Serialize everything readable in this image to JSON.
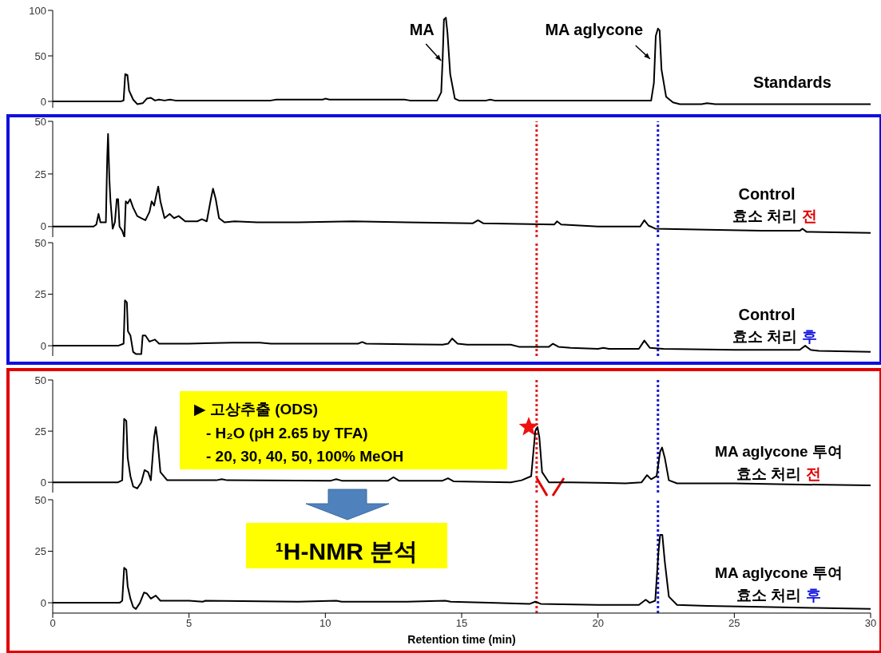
{
  "chart_data": [
    {
      "type": "line",
      "marker": "none",
      "tick_labels": "y",
      "xlim": [
        0,
        30
      ],
      "xticks": [
        0,
        5,
        10,
        15,
        20,
        25,
        30
      ],
      "ylim": [
        -7,
        100
      ],
      "yticks": [
        0,
        50,
        100
      ],
      "x": [
        0,
        2.5,
        2.6,
        2.66,
        2.74,
        2.8,
        2.95,
        3.1,
        3.3,
        3.45,
        3.6,
        3.75,
        3.9,
        4.1,
        4.3,
        4.5,
        8,
        8.2,
        9.9,
        10.0,
        10.15,
        12.9,
        13.1,
        14.1,
        14.25,
        14.3,
        14.35,
        14.42,
        14.48,
        14.58,
        14.75,
        14.9,
        15.9,
        16.05,
        16.2,
        18.5,
        21.95,
        22.05,
        22.12,
        22.2,
        22.26,
        22.33,
        22.5,
        22.75,
        23,
        23.8,
        24,
        24.3,
        30
      ],
      "series": [
        {
          "color": "#000000",
          "values": [
            0,
            0,
            1,
            30,
            29,
            12,
            2,
            -3,
            -2,
            3,
            4,
            1,
            2,
            1,
            2,
            1,
            1,
            2,
            2,
            3,
            2,
            2,
            1,
            1,
            10,
            45,
            90,
            92,
            75,
            30,
            3,
            1,
            1,
            2,
            1,
            1,
            1,
            20,
            72,
            80,
            78,
            35,
            5,
            -1,
            -3,
            -3,
            -2,
            -3,
            -3
          ]
        }
      ],
      "annotations": [
        {
          "text": "MA",
          "x": 14.42,
          "y": 92
        },
        {
          "text": "MA aglycone",
          "x": 22.2,
          "y": 80
        },
        "Standards"
      ]
    },
    {
      "type": "line",
      "marker": "none",
      "tick_labels": "y",
      "xlim": [
        0,
        30
      ],
      "xticks": [
        0,
        5,
        10,
        15,
        20,
        25,
        30
      ],
      "ylim": [
        -5,
        50
      ],
      "yticks": [
        0,
        25,
        50
      ],
      "x": [
        0,
        1.5,
        1.6,
        1.68,
        1.75,
        1.95,
        2.0,
        2.03,
        2.08,
        2.12,
        2.2,
        2.28,
        2.35,
        2.4,
        2.45,
        2.55,
        2.63,
        2.68,
        2.75,
        2.84,
        2.95,
        3.1,
        3.25,
        3.4,
        3.55,
        3.63,
        3.72,
        3.8,
        3.87,
        3.95,
        4.1,
        4.29,
        4.45,
        4.62,
        4.86,
        5.3,
        5.47,
        5.65,
        5.8,
        5.88,
        5.98,
        6.1,
        6.3,
        6.67,
        7.5,
        9,
        11,
        13,
        15.4,
        15.6,
        15.8,
        18.4,
        18.5,
        18.65,
        20,
        21.55,
        21.7,
        21.85,
        22.1,
        24,
        26,
        27.4,
        27.5,
        27.65,
        30
      ],
      "series": [
        {
          "color": "#000000",
          "values": [
            0,
            0,
            1,
            6,
            2,
            2,
            33,
            44,
            22,
            12,
            -1,
            2,
            13,
            13,
            0,
            -2,
            -5,
            12,
            11,
            13,
            9,
            5,
            4,
            3,
            7,
            12,
            10,
            15,
            19,
            12,
            4,
            6,
            4,
            5,
            2.5,
            2.5,
            3.5,
            2.5,
            13,
            18,
            13,
            4,
            2,
            2.5,
            2,
            2,
            2.5,
            2,
            1.5,
            3,
            1.5,
            1,
            2.5,
            1,
            0,
            0,
            3,
            0.5,
            -1,
            -1.5,
            -2,
            -2,
            -1,
            -2.5,
            -3
          ]
        }
      ],
      "ref_lines": [
        {
          "axis": "x",
          "value": 17.75,
          "color": "#e02020",
          "line_style": "dotted"
        },
        {
          "axis": "x",
          "value": 22.2,
          "color": "#1a1ad0",
          "line_style": "dotted"
        }
      ],
      "annotations": [
        "Control",
        "효소 처리 전"
      ]
    },
    {
      "type": "line",
      "marker": "none",
      "tick_labels": "y",
      "xlim": [
        0,
        30
      ],
      "xticks": [
        0,
        5,
        10,
        15,
        20,
        25,
        30
      ],
      "ylim": [
        -5,
        50
      ],
      "yticks": [
        0,
        25,
        50
      ],
      "x": [
        0,
        2.4,
        2.6,
        2.65,
        2.72,
        2.76,
        2.85,
        2.95,
        3.05,
        3.25,
        3.3,
        3.4,
        3.55,
        3.75,
        3.9,
        5,
        6.6,
        7.6,
        8,
        11.2,
        11.35,
        11.5,
        14.3,
        14.5,
        14.65,
        14.85,
        15.2,
        16.8,
        17.1,
        18.2,
        18.35,
        18.55,
        19,
        20,
        20.2,
        20.4,
        21.5,
        21.7,
        21.9,
        22.4,
        25,
        27.4,
        27.6,
        27.8,
        28.1,
        30
      ],
      "series": [
        {
          "color": "#000000",
          "values": [
            0,
            0,
            1,
            22,
            21,
            7,
            5,
            -3,
            -4,
            -4,
            5,
            5,
            2,
            3,
            1,
            1,
            1.5,
            1.5,
            1,
            1,
            1.8,
            1,
            0.5,
            1,
            3.5,
            1,
            0.5,
            0.5,
            -0.5,
            -0.5,
            1,
            -0.5,
            -1,
            -1.5,
            -1,
            -1.5,
            -1.5,
            2.5,
            -1,
            -1.5,
            -2,
            -2,
            0,
            -2,
            -2.5,
            -3
          ]
        }
      ],
      "ref_lines": [
        {
          "axis": "x",
          "value": 17.75,
          "color": "#e02020",
          "line_style": "dotted"
        },
        {
          "axis": "x",
          "value": 22.2,
          "color": "#1a1ad0",
          "line_style": "dotted"
        }
      ],
      "annotations": [
        "Control",
        "효소 처리 후"
      ]
    },
    {
      "type": "line",
      "marker": "none",
      "tick_labels": "y",
      "xlim": [
        0,
        30
      ],
      "xticks": [
        0,
        5,
        10,
        15,
        20,
        25,
        30
      ],
      "ylim": [
        -5,
        50
      ],
      "yticks": [
        0,
        25,
        50
      ],
      "x": [
        0,
        2.4,
        2.55,
        2.62,
        2.7,
        2.75,
        2.85,
        2.95,
        3.1,
        3.25,
        3.37,
        3.5,
        3.6,
        3.72,
        3.78,
        3.85,
        3.95,
        4.2,
        6,
        6.2,
        6.4,
        10.2,
        10.4,
        10.6,
        12.3,
        12.5,
        12.7,
        14.3,
        14.5,
        14.7,
        16.8,
        17.2,
        17.55,
        17.7,
        17.78,
        17.85,
        17.95,
        18.2,
        19,
        21,
        21.6,
        21.8,
        21.95,
        22.15,
        22.28,
        22.35,
        22.45,
        22.6,
        22.9,
        25,
        27,
        30
      ],
      "series": [
        {
          "color": "#000000",
          "values": [
            0,
            0,
            1,
            31,
            30,
            12,
            3,
            -2,
            -3,
            0,
            6,
            5,
            1,
            22,
            27,
            20,
            5,
            1,
            1,
            1.5,
            1,
            0.8,
            1.5,
            0.8,
            0.8,
            2.5,
            0.8,
            0.8,
            2,
            0.5,
            0,
            1,
            3,
            25,
            27,
            22,
            5,
            0,
            0,
            -0.5,
            0,
            3.5,
            1.5,
            3,
            15,
            17,
            12,
            1,
            -0.5,
            -0.5,
            -1,
            -1.5
          ]
        }
      ],
      "ref_lines": [
        {
          "axis": "x",
          "value": 17.75,
          "color": "#e02020",
          "line_style": "dotted"
        },
        {
          "axis": "x",
          "value": 22.2,
          "color": "#1a1ad0",
          "line_style": "dotted"
        }
      ],
      "annotations": [
        "▶ 고상추출 (ODS)",
        "- H₂O (pH 2.65 by TFA)",
        "- 20, 30, 40, 50, 100% MeOH",
        "MA aglycone 투여",
        "효소 처리 전"
      ]
    },
    {
      "type": "line",
      "marker": "none",
      "xlim": [
        0,
        30
      ],
      "xticks": [
        0,
        5,
        10,
        15,
        20,
        25,
        30
      ],
      "ylim": [
        -5,
        50
      ],
      "yticks": [
        0,
        25,
        50
      ],
      "xlabel": "Retention time (min)",
      "x": [
        0,
        2.45,
        2.55,
        2.62,
        2.7,
        2.75,
        2.85,
        2.95,
        3.05,
        3.2,
        3.35,
        3.45,
        3.6,
        3.78,
        3.95,
        5,
        5.5,
        5.6,
        9,
        10.4,
        10.6,
        13,
        14.4,
        14.6,
        16,
        17.5,
        17.7,
        17.9,
        20,
        21.5,
        21.75,
        21.9,
        22.1,
        22.22,
        22.28,
        22.36,
        22.45,
        22.6,
        22.9,
        24,
        26,
        28,
        30
      ],
      "series": [
        {
          "color": "#000000",
          "values": [
            0,
            0,
            1,
            17,
            16,
            8,
            2,
            -2,
            -3,
            0,
            5,
            4.5,
            2,
            3.5,
            1,
            1,
            0.5,
            1,
            0.5,
            1,
            0.5,
            0.5,
            1,
            0.5,
            0,
            -0.5,
            0.5,
            -0.5,
            -1,
            -1,
            1.5,
            0,
            1,
            25,
            33,
            33,
            20,
            3,
            -1,
            -1.5,
            -2,
            -2.5,
            -3
          ]
        }
      ],
      "ref_lines": [
        {
          "axis": "x",
          "value": 17.75,
          "color": "#e02020",
          "line_style": "dotted"
        },
        {
          "axis": "x",
          "value": 22.2,
          "color": "#1a1ad0",
          "line_style": "dotted"
        }
      ],
      "annotations": [
        "¹H-NMR 분석",
        "MA aglycone 투여",
        "효소 처리 후"
      ]
    }
  ]
}
